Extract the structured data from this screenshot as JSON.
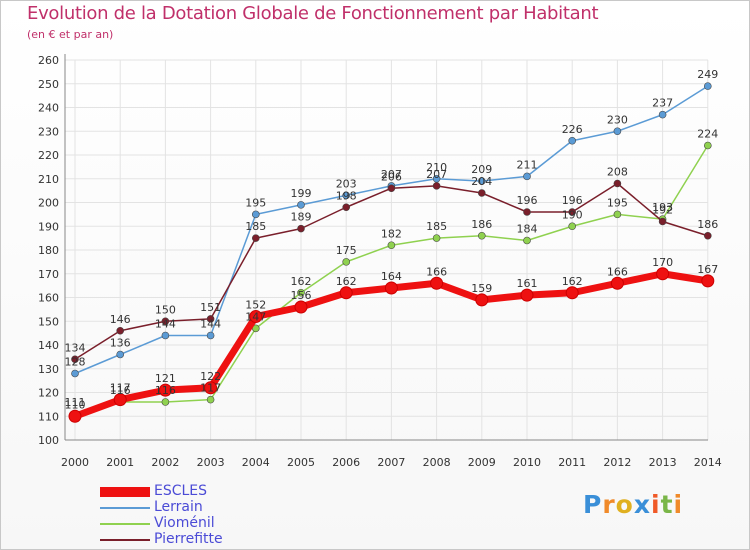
{
  "title": "Evolution de la Dotation Globale de Fonctionnement par Habitant",
  "subtitle": "(en € et par an)",
  "logo": {
    "letters": [
      "P",
      "r",
      "o",
      "x",
      "i",
      "t",
      "i"
    ],
    "colors": [
      "#3a8fd8",
      "#f08a2a",
      "#e0b020",
      "#3a8fd8",
      "#f05a28",
      "#7ab648",
      "#f08a2a"
    ]
  },
  "chart_data": {
    "type": "line",
    "title": "Evolution de la Dotation Globale de Fonctionnement par Habitant",
    "subtitle": "(en € et par an)",
    "xlabel": "",
    "ylabel": "",
    "ylim": [
      100,
      260
    ],
    "yticks": [
      100,
      110,
      120,
      130,
      140,
      150,
      160,
      170,
      180,
      190,
      200,
      210,
      220,
      230,
      240,
      250,
      260
    ],
    "x": [
      2000,
      2001,
      2002,
      2003,
      2004,
      2005,
      2006,
      2007,
      2008,
      2009,
      2010,
      2011,
      2012,
      2013,
      2014
    ],
    "grid": true,
    "legend": "bottom-left",
    "series": [
      {
        "name": "ESCLES",
        "color": "#ee1111",
        "values": [
          110,
          117,
          121,
          122,
          152,
          156,
          162,
          164,
          166,
          159,
          161,
          162,
          166,
          170,
          167
        ]
      },
      {
        "name": "Lerrain",
        "color": "#5b9bd5",
        "values": [
          128,
          136,
          144,
          144,
          195,
          199,
          203,
          207,
          210,
          209,
          211,
          226,
          230,
          237,
          249
        ]
      },
      {
        "name": "Vioménil",
        "color": "#8fd14f",
        "values": [
          111,
          116,
          116,
          117,
          147,
          162,
          175,
          182,
          185,
          186,
          184,
          190,
          195,
          193,
          224
        ]
      },
      {
        "name": "Pierrefitte",
        "color": "#7a1f2b",
        "values": [
          134,
          146,
          150,
          151,
          185,
          189,
          198,
          206,
          207,
          204,
          196,
          196,
          208,
          192,
          186
        ]
      }
    ]
  }
}
